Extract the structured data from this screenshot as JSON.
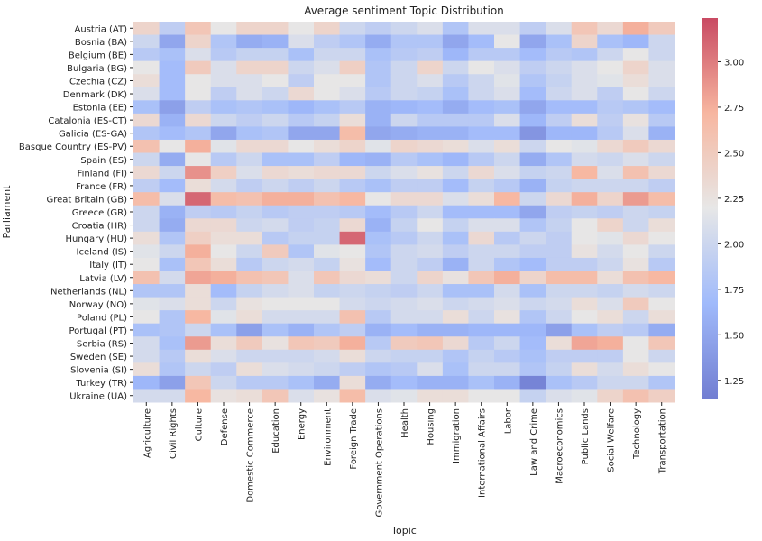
{
  "chart_data": {
    "type": "heatmap",
    "title": "Average sentiment Topic Distribution",
    "xlabel": "Topic",
    "ylabel": "Parliament",
    "colormap": "coolwarm",
    "colorbar_range": [
      1.15,
      3.24
    ],
    "colorbar_ticks": [
      "3.00",
      "2.75",
      "2.50",
      "2.25",
      "2.00",
      "1.75",
      "1.50",
      "1.25"
    ],
    "columns": [
      "Agriculture",
      "Civil Rights",
      "Culture",
      "Defense",
      "Domestic Commerce",
      "Education",
      "Energy",
      "Environment",
      "Foreign Trade",
      "Government Operations",
      "Health",
      "Housing",
      "Immigration",
      "International Affairs",
      "Labor",
      "Law and Crime",
      "Macroeconomics",
      "Public Lands",
      "Social Welfare",
      "Technology",
      "Transportation"
    ],
    "rows": [
      "Austria (AT)",
      "Bosnia (BA)",
      "Belgium (BE)",
      "Bulgaria (BG)",
      "Czechia (CZ)",
      "Denmark (DK)",
      "Estonia (EE)",
      "Catalonia (ES-CT)",
      "Galicia (ES-GA)",
      "Basque Country (ES-PV)",
      "Spain (ES)",
      "Finland (FI)",
      "France (FR)",
      "Great Britain (GB)",
      "Greece (GR)",
      "Croatia (HR)",
      "Hungary (HU)",
      "Iceland (IS)",
      "Italy (IT)",
      "Latvia (LV)",
      "Netherlands (NL)",
      "Norway (NO)",
      "Poland (PL)",
      "Portugal (PT)",
      "Serbia (RS)",
      "Sweden (SE)",
      "Slovenia (SI)",
      "Turkey (TR)",
      "Ukraine (UA)"
    ],
    "values": [
      [
        2.4,
        1.9,
        2.55,
        2.2,
        2.4,
        2.4,
        2.2,
        2.4,
        2.0,
        1.9,
        2.0,
        2.1,
        1.8,
        2.1,
        2.1,
        1.9,
        2.1,
        2.55,
        2.35,
        2.75,
        2.5
      ],
      [
        2.0,
        1.5,
        2.4,
        1.8,
        1.55,
        1.6,
        2.1,
        1.9,
        1.8,
        1.55,
        1.8,
        1.8,
        1.5,
        1.7,
        2.2,
        1.5,
        1.75,
        2.4,
        1.75,
        1.65,
        2.0
      ],
      [
        1.85,
        1.75,
        2.1,
        1.85,
        1.95,
        1.95,
        1.75,
        2.0,
        2.0,
        1.75,
        1.85,
        1.9,
        1.65,
        1.85,
        1.85,
        1.7,
        1.85,
        1.8,
        2.0,
        2.2,
        2.0
      ],
      [
        2.2,
        1.7,
        2.5,
        2.1,
        2.4,
        2.4,
        2.0,
        2.1,
        2.45,
        1.8,
        2.0,
        2.4,
        2.0,
        2.2,
        2.1,
        1.9,
        2.0,
        2.1,
        2.2,
        2.4,
        2.1
      ],
      [
        2.3,
        1.7,
        2.2,
        2.1,
        2.1,
        2.2,
        1.9,
        2.2,
        2.2,
        1.8,
        2.0,
        2.1,
        1.85,
        2.0,
        2.15,
        1.8,
        1.95,
        2.1,
        2.15,
        2.3,
        2.1
      ],
      [
        2.1,
        1.7,
        2.2,
        1.9,
        2.1,
        2.0,
        2.35,
        2.2,
        2.1,
        1.85,
        2.0,
        1.95,
        1.75,
        2.0,
        2.1,
        1.7,
        2.0,
        2.1,
        1.9,
        2.2,
        2.0
      ],
      [
        1.75,
        1.45,
        1.9,
        1.75,
        1.8,
        1.75,
        1.65,
        1.75,
        1.85,
        1.6,
        1.65,
        1.7,
        1.55,
        1.7,
        1.75,
        1.5,
        1.7,
        1.7,
        1.85,
        1.8,
        1.7
      ],
      [
        2.35,
        1.6,
        2.35,
        2.0,
        1.9,
        2.0,
        1.85,
        1.95,
        2.3,
        1.6,
        2.0,
        1.85,
        1.85,
        1.85,
        2.1,
        1.65,
        1.9,
        2.3,
        1.9,
        2.25,
        1.85
      ],
      [
        1.8,
        1.7,
        1.8,
        1.5,
        1.75,
        1.8,
        1.5,
        1.5,
        2.65,
        1.5,
        1.55,
        1.6,
        1.6,
        1.7,
        1.7,
        1.35,
        1.65,
        1.65,
        1.85,
        2.1,
        1.6
      ],
      [
        2.6,
        2.2,
        2.75,
        2.15,
        2.35,
        2.35,
        2.2,
        2.3,
        2.4,
        2.15,
        2.4,
        2.35,
        2.3,
        2.1,
        2.3,
        2.0,
        2.2,
        2.15,
        2.35,
        2.5,
        2.35
      ],
      [
        2.0,
        1.55,
        2.2,
        1.85,
        2.0,
        1.75,
        1.75,
        1.9,
        1.65,
        1.6,
        1.85,
        1.75,
        1.65,
        1.85,
        2.0,
        1.55,
        1.8,
        2.05,
        2.0,
        2.1,
        2.0
      ],
      [
        2.35,
        2.0,
        2.9,
        2.45,
        2.1,
        2.35,
        2.3,
        2.35,
        2.35,
        2.0,
        2.1,
        2.25,
        2.0,
        2.35,
        2.1,
        1.95,
        2.0,
        2.7,
        2.1,
        2.6,
        2.35
      ],
      [
        1.9,
        1.7,
        2.3,
        2.05,
        1.9,
        2.0,
        1.9,
        2.0,
        1.85,
        1.75,
        1.9,
        1.9,
        1.7,
        1.95,
        1.85,
        1.6,
        1.95,
        2.0,
        2.0,
        2.0,
        1.9
      ],
      [
        2.65,
        2.1,
        3.1,
        2.65,
        2.6,
        2.75,
        2.75,
        2.6,
        2.7,
        2.2,
        2.35,
        2.35,
        2.1,
        2.3,
        2.7,
        2.0,
        2.35,
        2.75,
        2.4,
        2.85,
        2.65
      ],
      [
        2.0,
        1.6,
        1.9,
        1.85,
        1.95,
        1.85,
        1.9,
        1.9,
        1.85,
        1.7,
        1.85,
        2.0,
        1.7,
        1.7,
        1.7,
        1.5,
        1.9,
        1.95,
        1.9,
        2.0,
        1.95
      ],
      [
        2.0,
        1.55,
        2.35,
        2.35,
        2.0,
        2.05,
        1.9,
        1.95,
        2.35,
        1.6,
        1.95,
        2.2,
        1.95,
        2.1,
        2.1,
        1.8,
        1.95,
        2.2,
        2.4,
        2.0,
        2.3
      ],
      [
        2.3,
        1.8,
        2.45,
        2.3,
        2.3,
        1.85,
        1.95,
        1.95,
        3.1,
        1.75,
        1.85,
        2.0,
        1.75,
        2.35,
        1.85,
        2.0,
        1.9,
        2.2,
        2.15,
        2.35,
        2.2
      ],
      [
        2.15,
        2.0,
        2.75,
        2.2,
        2.0,
        2.5,
        1.8,
        2.15,
        2.2,
        1.8,
        2.0,
        2.05,
        1.9,
        2.0,
        2.0,
        1.9,
        1.9,
        2.25,
        2.05,
        2.2,
        2.0
      ],
      [
        2.2,
        1.75,
        2.55,
        2.3,
        1.85,
        2.0,
        2.05,
        1.95,
        2.25,
        1.7,
        2.0,
        1.9,
        1.6,
        2.0,
        1.8,
        1.7,
        1.9,
        1.9,
        2.0,
        2.25,
        1.85
      ],
      [
        2.6,
        2.05,
        2.8,
        2.75,
        2.6,
        2.55,
        2.1,
        2.55,
        2.35,
        2.3,
        2.0,
        2.4,
        2.25,
        2.55,
        2.75,
        2.4,
        2.65,
        2.65,
        2.3,
        2.6,
        2.7
      ],
      [
        1.8,
        1.8,
        2.3,
        1.7,
        1.95,
        2.05,
        2.1,
        1.95,
        2.0,
        1.95,
        1.9,
        2.0,
        1.75,
        1.75,
        2.05,
        1.75,
        2.0,
        2.0,
        1.95,
        2.05,
        2.0
      ],
      [
        2.15,
        2.1,
        2.3,
        2.0,
        2.25,
        2.2,
        2.2,
        2.2,
        2.05,
        2.0,
        2.05,
        2.1,
        2.0,
        2.05,
        2.1,
        2.0,
        2.05,
        2.3,
        2.1,
        2.5,
        2.2
      ],
      [
        2.2,
        1.8,
        2.7,
        2.15,
        2.3,
        2.05,
        2.05,
        2.05,
        2.6,
        1.85,
        2.05,
        2.05,
        2.3,
        2.0,
        2.25,
        1.8,
        2.0,
        2.2,
        2.3,
        2.0,
        2.3
      ],
      [
        1.75,
        1.8,
        2.0,
        1.75,
        1.45,
        1.75,
        1.6,
        1.8,
        1.9,
        1.6,
        1.7,
        1.6,
        1.6,
        1.65,
        1.65,
        1.65,
        1.45,
        1.75,
        1.9,
        1.85,
        1.55
      ],
      [
        2.05,
        1.75,
        2.85,
        2.3,
        2.5,
        2.25,
        2.55,
        2.5,
        2.75,
        1.85,
        2.5,
        2.55,
        2.35,
        1.85,
        2.0,
        1.7,
        2.3,
        2.8,
        2.75,
        2.2,
        2.55
      ],
      [
        2.05,
        1.85,
        2.3,
        2.1,
        2.0,
        2.0,
        2.0,
        2.05,
        2.3,
        2.0,
        1.95,
        1.95,
        1.8,
        1.95,
        1.85,
        1.75,
        1.9,
        1.9,
        1.9,
        2.2,
        2.0
      ],
      [
        2.3,
        1.8,
        2.0,
        1.9,
        2.3,
        2.1,
        2.05,
        2.0,
        1.9,
        1.8,
        1.85,
        2.1,
        1.75,
        2.0,
        2.0,
        1.8,
        1.95,
        2.3,
        2.05,
        2.3,
        2.2
      ],
      [
        1.65,
        1.45,
        2.55,
        2.0,
        1.85,
        1.85,
        1.75,
        1.55,
        2.3,
        1.55,
        1.7,
        1.6,
        1.6,
        1.75,
        1.6,
        1.2,
        1.75,
        1.85,
        2.0,
        2.0,
        1.8
      ],
      [
        2.05,
        2.05,
        2.7,
        2.25,
        2.3,
        2.55,
        2.1,
        2.25,
        2.65,
        2.1,
        2.15,
        2.3,
        2.3,
        2.2,
        2.2,
        1.95,
        2.1,
        2.15,
        2.4,
        2.6,
        2.45
      ]
    ]
  }
}
